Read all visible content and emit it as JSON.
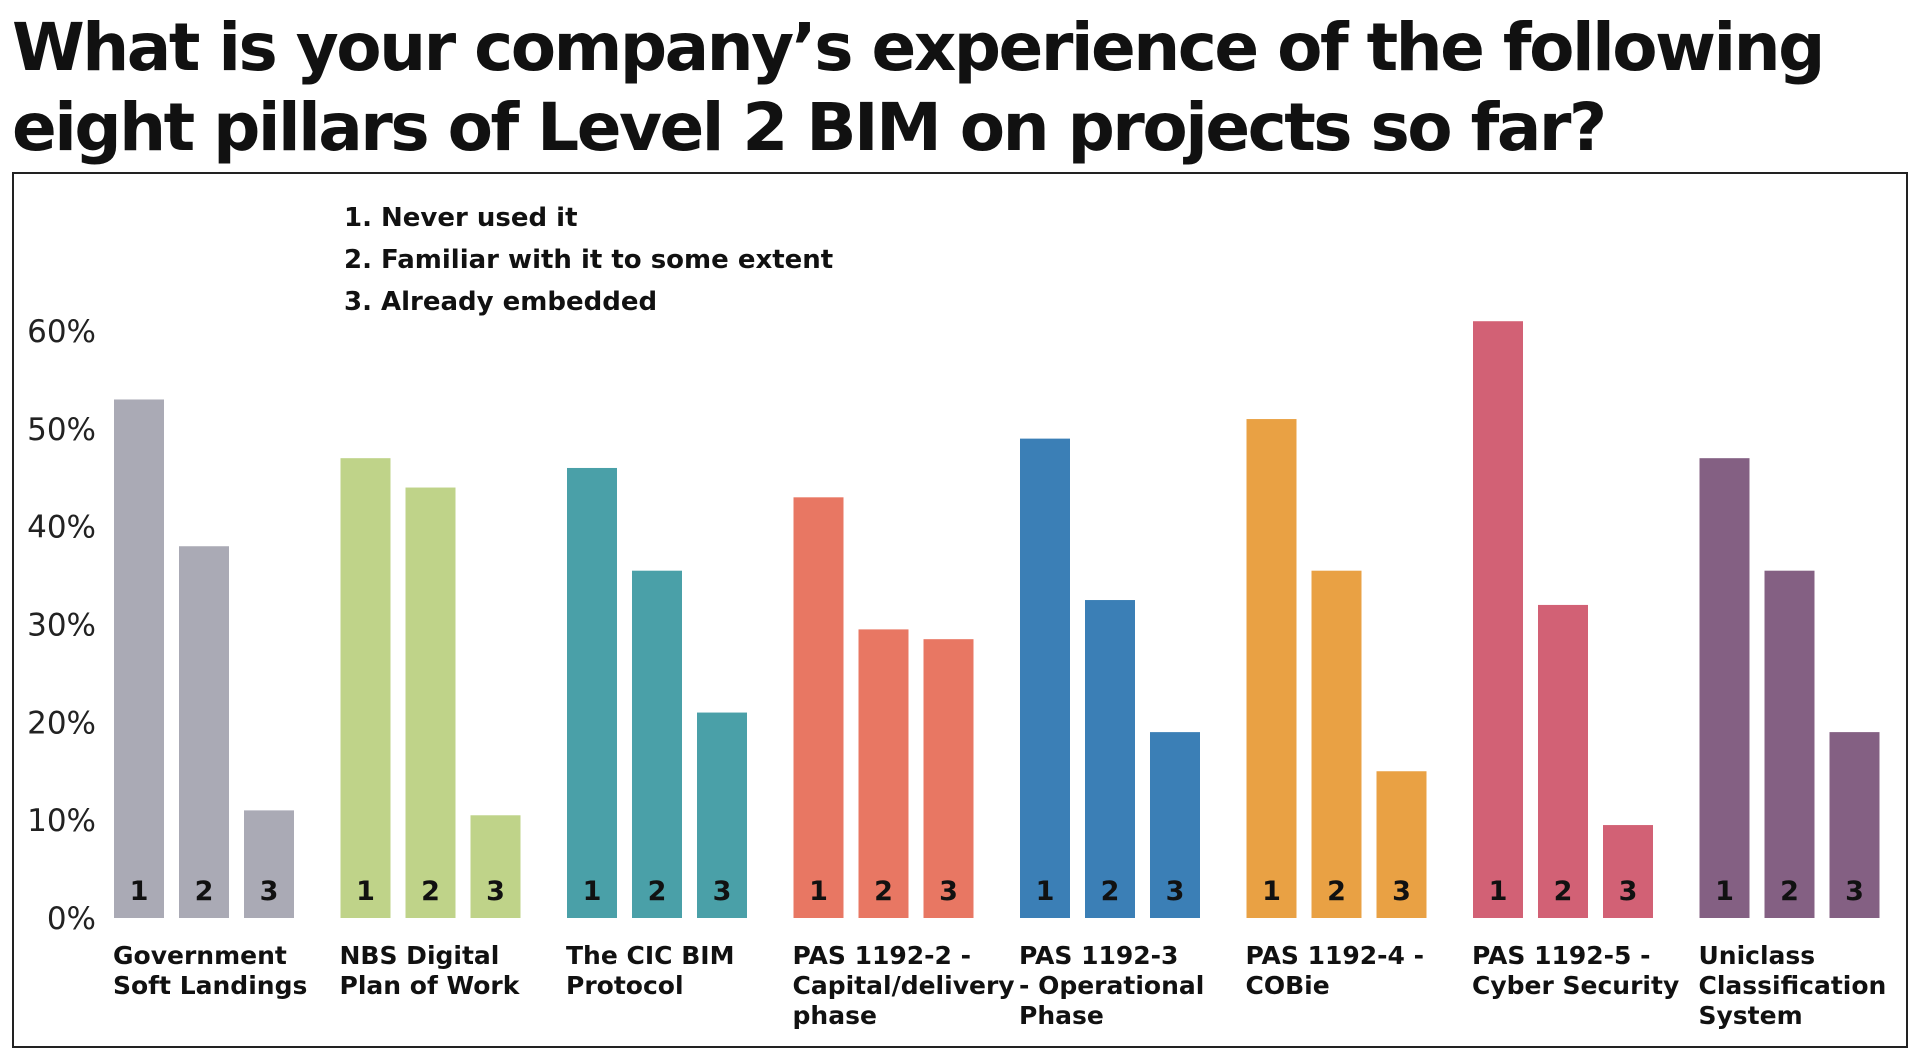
{
  "title": "What is your company’s experience of the following eight pillars of Level 2 BIM on projects so far?",
  "chart_data": {
    "type": "bar",
    "title": "What is your company’s experience of the following eight pillars of Level 2 BIM on projects so far?",
    "xlabel": "",
    "ylabel": "",
    "ylim": [
      0,
      60
    ],
    "y_ticks": [
      0,
      10,
      20,
      30,
      40,
      50,
      60
    ],
    "y_tick_labels": [
      "0%",
      "10%",
      "20%",
      "30%",
      "40%",
      "50%",
      "60%"
    ],
    "grid": false,
    "legend_position": "top-left",
    "legend": [
      "1. Never used it",
      "2. Familiar with it to some extent",
      "3. Already embedded"
    ],
    "bar_labels": [
      "1",
      "2",
      "3"
    ],
    "groups": [
      {
        "category_lines": [
          "Government",
          "Soft Landings"
        ],
        "color": "#aaaab5",
        "values": [
          53,
          38,
          11
        ]
      },
      {
        "category_lines": [
          "NBS Digital",
          "Plan of Work"
        ],
        "color": "#bfd389",
        "values": [
          47,
          44,
          10.5
        ]
      },
      {
        "category_lines": [
          "The CIC BIM",
          "Protocol"
        ],
        "color": "#4aa0a8",
        "values": [
          46,
          35.5,
          21
        ]
      },
      {
        "category_lines": [
          "PAS 1192-2 -",
          "Capital/delivery",
          "phase"
        ],
        "color": "#e87763",
        "values": [
          43,
          29.5,
          28.5
        ]
      },
      {
        "category_lines": [
          "PAS 1192-3",
          "- Operational",
          "Phase"
        ],
        "color": "#3b7fb6",
        "values": [
          49,
          32.5,
          19
        ]
      },
      {
        "category_lines": [
          "PAS 1192-4 -",
          "COBie"
        ],
        "color": "#e9a144",
        "values": [
          51,
          35.5,
          15
        ]
      },
      {
        "category_lines": [
          "PAS 1192-5 -",
          "Cyber Security"
        ],
        "color": "#d26175",
        "values": [
          61,
          32,
          9.5
        ]
      },
      {
        "category_lines": [
          "Uniclass",
          "Classification",
          "System"
        ],
        "color": "#846083",
        "values": [
          47,
          35.5,
          19
        ]
      }
    ]
  }
}
